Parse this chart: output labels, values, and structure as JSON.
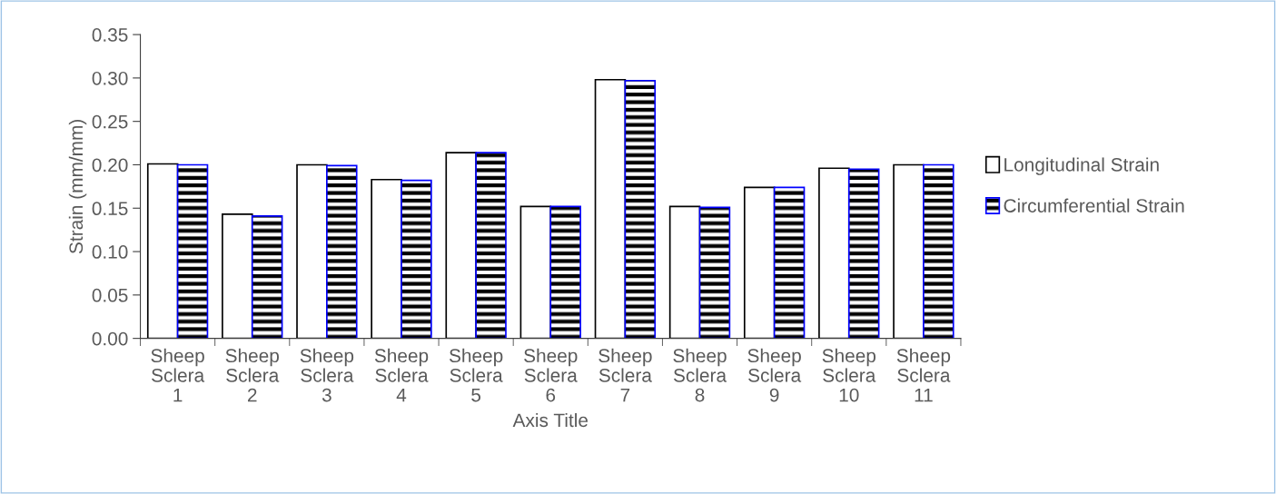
{
  "chart_data": {
    "type": "bar",
    "xlabel": "Axis Title",
    "ylabel": "Strain (mm/mm)",
    "categories": [
      "Sheep\nSclera\n1",
      "Sheep\nSclera\n2",
      "Sheep\nSclera\n3",
      "Sheep\nSclera\n4",
      "Sheep\nSclera\n5",
      "Sheep\nSclera\n6",
      "Sheep\nSclera\n7",
      "Sheep\nSclera\n8",
      "Sheep\nSclera\n9",
      "Sheep\nSclera\n10",
      "Sheep\nSclera\n11"
    ],
    "series": [
      {
        "name": "Longitudinal Strain",
        "color": "#ffffff",
        "values": [
          0.201,
          0.143,
          0.2,
          0.183,
          0.214,
          0.152,
          0.298,
          0.152,
          0.174,
          0.196,
          0.2
        ]
      },
      {
        "name": "Circumferential Strain",
        "color": "#0000ff",
        "values": [
          0.2,
          0.141,
          0.199,
          0.182,
          0.214,
          0.152,
          0.297,
          0.151,
          0.174,
          0.195,
          0.2
        ]
      }
    ],
    "ylim": [
      0,
      0.35
    ],
    "yticks": [
      {
        "value": 0,
        "label": "0.00"
      },
      {
        "value": 0.05,
        "label": "0.05"
      },
      {
        "value": 0.1,
        "label": "0.10"
      },
      {
        "value": 0.15,
        "label": "0.15"
      },
      {
        "value": 0.2,
        "label": "0.20"
      },
      {
        "value": 0.25,
        "label": "0.25"
      },
      {
        "value": 0.3,
        "label": "0.30"
      },
      {
        "value": 0.35,
        "label": "0.35"
      }
    ],
    "grid": false,
    "legend": "right"
  }
}
